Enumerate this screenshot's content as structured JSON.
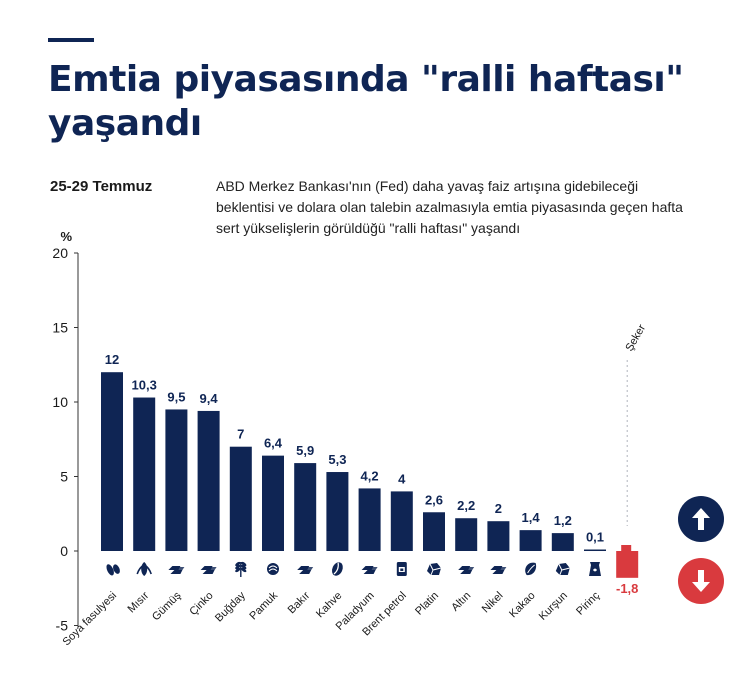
{
  "header": {
    "title": "Emtia piyasasında \"ralli haftası\" yaşandı",
    "date": "25-29 Temmuz",
    "description": "ABD Merkez Bankası'nın (Fed) daha yavaş faiz artışına gidebileceği beklentisi ve dolara olan talebin azalmasıyla emtia piyasasında geçen hafta sert yükselişlerin görüldüğü \"ralli haftası\" yaşandı"
  },
  "colors": {
    "positive": "#0f2554",
    "negative": "#d93a3e",
    "grid": "#b0b5bd"
  },
  "chart_data": {
    "type": "bar",
    "ylabel": "%",
    "ylim": [
      -5,
      20
    ],
    "yticks": [
      -5,
      0,
      5,
      10,
      15,
      20
    ],
    "categories": [
      "Soya fasulyesi",
      "Mısır",
      "Gümüş",
      "Çinko",
      "Buğday",
      "Pamuk",
      "Bakır",
      "Kahve",
      "Paladyum",
      "Brent petrol",
      "Platin",
      "Altın",
      "Nikel",
      "Kakao",
      "Kurşun",
      "Pirinç",
      "Şeker"
    ],
    "values": [
      12,
      10.3,
      9.5,
      9.4,
      7,
      6.4,
      5.9,
      5.3,
      4.2,
      4,
      2.6,
      2.2,
      2,
      1.4,
      1.2,
      0.1,
      -1.8
    ],
    "value_labels": [
      "12",
      "10,3",
      "9,5",
      "9,4",
      "7",
      "6,4",
      "5,9",
      "5,3",
      "4,2",
      "4",
      "2,6",
      "2,2",
      "2",
      "1,4",
      "1,2",
      "0,1",
      "-1,8"
    ],
    "icons": [
      "soybean-icon",
      "corn-icon",
      "metal-bar-icon",
      "metal-bar-icon",
      "wheat-icon",
      "cotton-icon",
      "metal-bar-icon",
      "coffee-bean-icon",
      "metal-bar-icon",
      "oil-barrel-icon",
      "ore-icon",
      "metal-bar-icon",
      "metal-bar-icon",
      "cocoa-icon",
      "ore-icon",
      "rice-sack-icon",
      "sugar-icon"
    ],
    "grid": false,
    "legend": "none",
    "indicators": [
      "arrow-up-icon",
      "arrow-down-icon"
    ]
  }
}
